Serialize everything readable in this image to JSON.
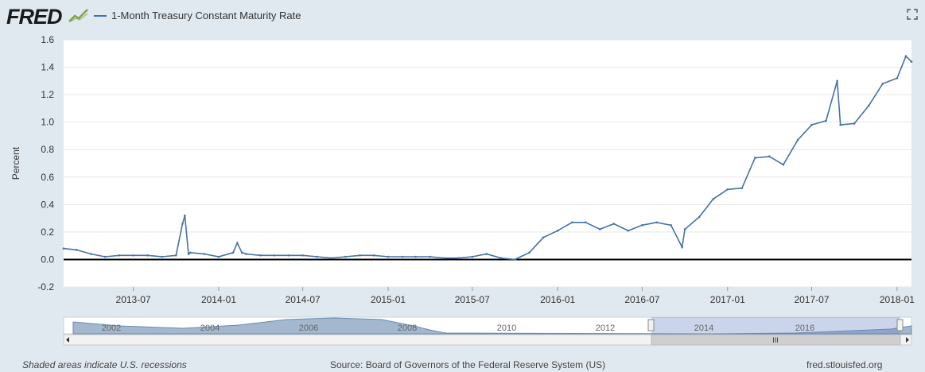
{
  "header": {
    "logo_text": "FRED",
    "legend_label": "1-Month Treasury Constant Maturity Rate",
    "colors": {
      "series": "#4572a7",
      "background": "#e1e9f0",
      "plot": "#ffffff"
    }
  },
  "icons": {
    "logo_graph": "fred-graph-icon",
    "fullscreen": "fullscreen-icon"
  },
  "chart_data": {
    "type": "line",
    "title": "",
    "xlabel": "",
    "ylabel": "Percent",
    "ylim": [
      -0.2,
      1.6
    ],
    "yticks": [
      "-0.2",
      "0.0",
      "0.2",
      "0.4",
      "0.6",
      "0.8",
      "1.0",
      "1.2",
      "1.4",
      "1.6"
    ],
    "xticks": [
      "2013-07",
      "2014-01",
      "2014-07",
      "2015-01",
      "2015-07",
      "2016-01",
      "2016-07",
      "2017-01",
      "2017-07",
      "2018-01"
    ],
    "xrange": [
      "2013-02",
      "2018-02"
    ],
    "grid": true,
    "series": [
      {
        "name": "1-Month Treasury Constant Maturity Rate",
        "points": [
          [
            "2013-02",
            0.08
          ],
          [
            "2013-03",
            0.07
          ],
          [
            "2013-04",
            0.04
          ],
          [
            "2013-05",
            0.02
          ],
          [
            "2013-06",
            0.03
          ],
          [
            "2013-07",
            0.03
          ],
          [
            "2013-08",
            0.03
          ],
          [
            "2013-09",
            0.02
          ],
          [
            "2013-10",
            0.03
          ],
          [
            "2013-10-15",
            0.26
          ],
          [
            "2013-10-20",
            0.32
          ],
          [
            "2013-10-28",
            0.04
          ],
          [
            "2013-11",
            0.05
          ],
          [
            "2013-12",
            0.04
          ],
          [
            "2014-01",
            0.02
          ],
          [
            "2014-02",
            0.05
          ],
          [
            "2014-02-10",
            0.12
          ],
          [
            "2014-02-20",
            0.05
          ],
          [
            "2014-03",
            0.04
          ],
          [
            "2014-04",
            0.03
          ],
          [
            "2014-05",
            0.03
          ],
          [
            "2014-06",
            0.03
          ],
          [
            "2014-07",
            0.03
          ],
          [
            "2014-08",
            0.02
          ],
          [
            "2014-09",
            0.01
          ],
          [
            "2014-10",
            0.02
          ],
          [
            "2014-11",
            0.03
          ],
          [
            "2014-12",
            0.03
          ],
          [
            "2015-01",
            0.02
          ],
          [
            "2015-02",
            0.02
          ],
          [
            "2015-03",
            0.02
          ],
          [
            "2015-04",
            0.02
          ],
          [
            "2015-05",
            0.01
          ],
          [
            "2015-06",
            0.01
          ],
          [
            "2015-07",
            0.02
          ],
          [
            "2015-08",
            0.04
          ],
          [
            "2015-09",
            0.01
          ],
          [
            "2015-10",
            0.0
          ],
          [
            "2015-11",
            0.05
          ],
          [
            "2015-12",
            0.16
          ],
          [
            "2016-01",
            0.21
          ],
          [
            "2016-02",
            0.27
          ],
          [
            "2016-03",
            0.27
          ],
          [
            "2016-04",
            0.22
          ],
          [
            "2016-05",
            0.26
          ],
          [
            "2016-06",
            0.21
          ],
          [
            "2016-07",
            0.25
          ],
          [
            "2016-08",
            0.27
          ],
          [
            "2016-09",
            0.25
          ],
          [
            "2016-09-25",
            0.09
          ],
          [
            "2016-10",
            0.22
          ],
          [
            "2016-11",
            0.31
          ],
          [
            "2016-12",
            0.44
          ],
          [
            "2017-01",
            0.51
          ],
          [
            "2017-02",
            0.52
          ],
          [
            "2017-03",
            0.74
          ],
          [
            "2017-04",
            0.75
          ],
          [
            "2017-05",
            0.69
          ],
          [
            "2017-06",
            0.87
          ],
          [
            "2017-07",
            0.98
          ],
          [
            "2017-08",
            1.01
          ],
          [
            "2017-08-25",
            1.3
          ],
          [
            "2017-09",
            0.98
          ],
          [
            "2017-10",
            0.99
          ],
          [
            "2017-11",
            1.12
          ],
          [
            "2017-12",
            1.28
          ],
          [
            "2018-01",
            1.32
          ],
          [
            "2018-01-20",
            1.48
          ],
          [
            "2018-02",
            1.44
          ]
        ]
      }
    ]
  },
  "navigator": {
    "years": [
      "2002",
      "2004",
      "2006",
      "2008",
      "2010",
      "2012",
      "2014",
      "2016"
    ],
    "grip": "III"
  },
  "footer": {
    "recession_note": "Shaded areas indicate U.S. recessions",
    "source": "Source: Board of Governors of the Federal Reserve System (US)",
    "site": "fred.stlouisfed.org"
  }
}
